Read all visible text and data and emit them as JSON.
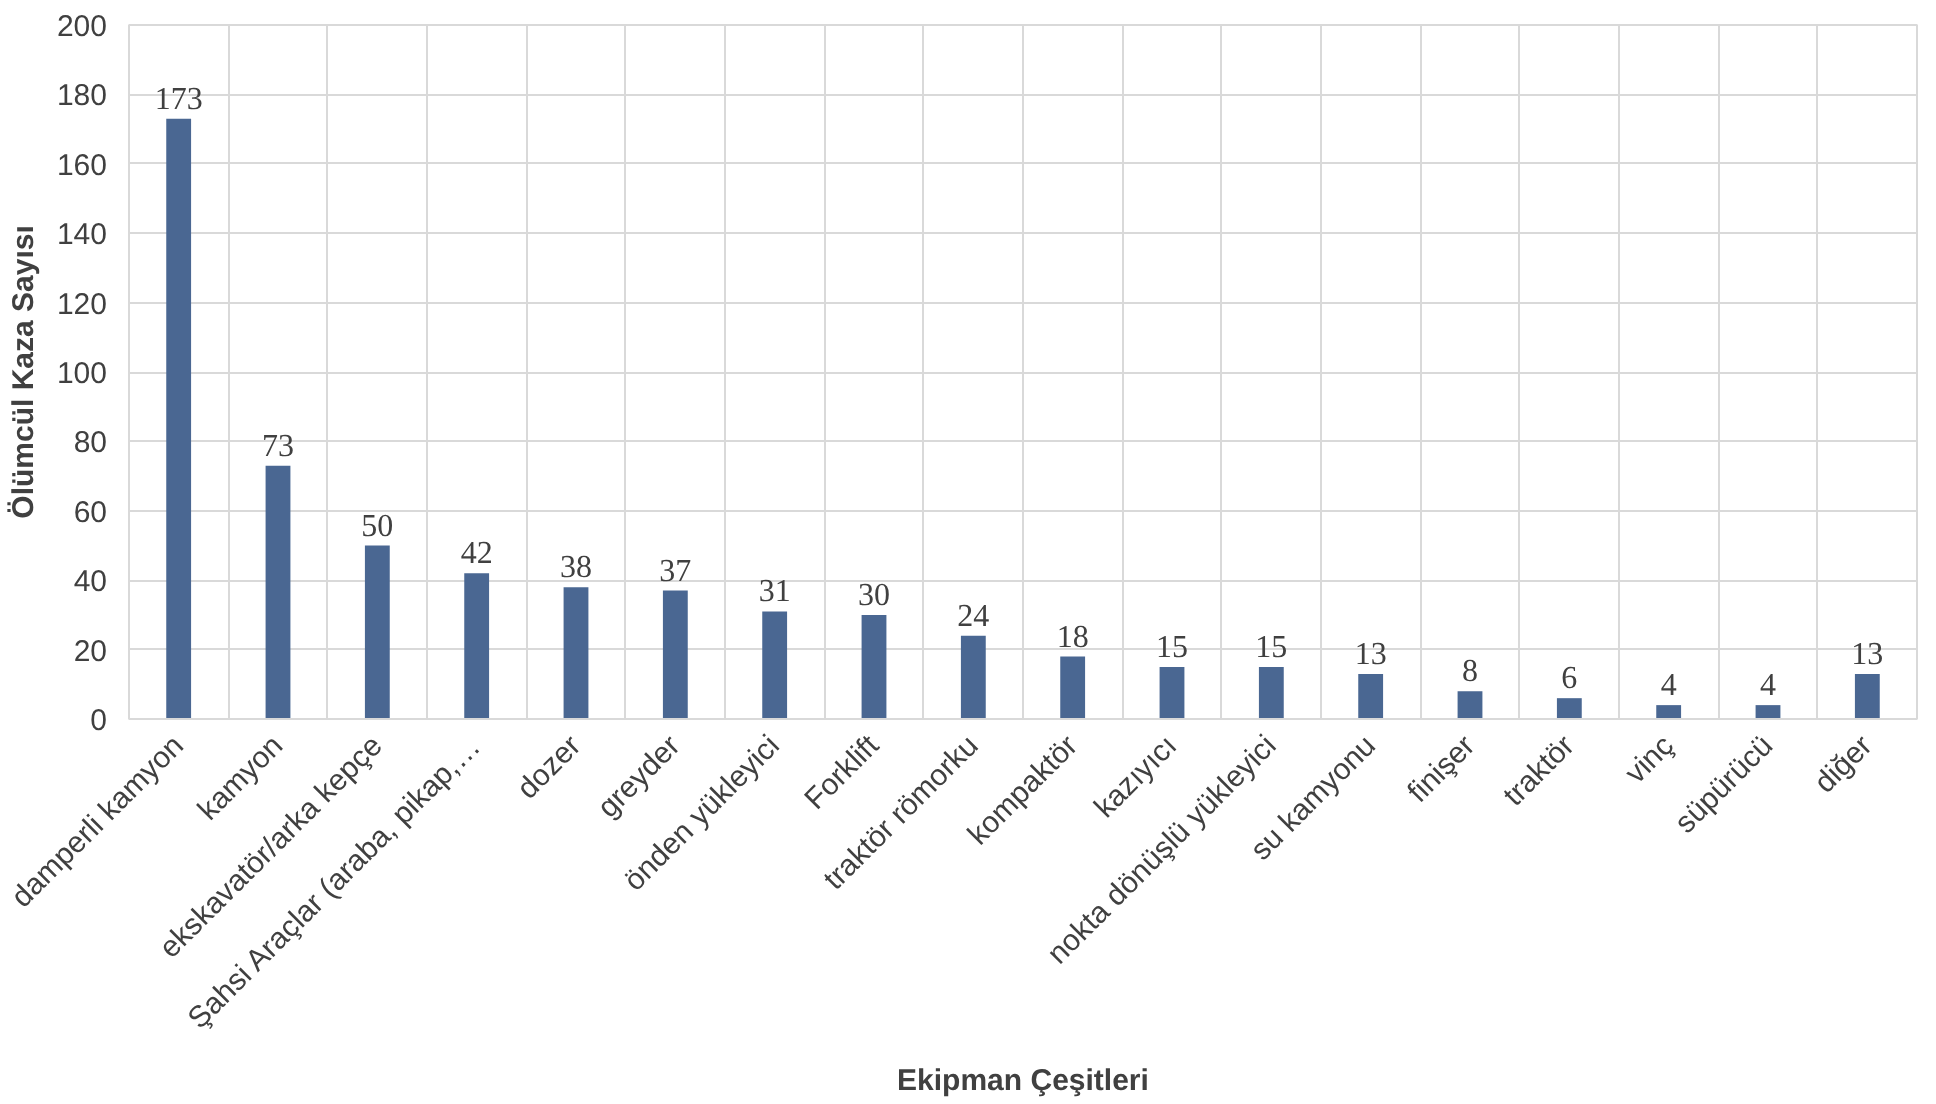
{
  "chart_data": {
    "type": "bar",
    "xlabel": "Ekipman Çeşitleri",
    "ylabel": "Ölümcül Kaza Sayısı",
    "categories": [
      "damperli kamyon",
      "kamyon",
      "ekskavatör/arka kepçe",
      "Şahsi Araçlar (araba, pikap,…",
      "dozer",
      "greyder",
      "önden yükleyici",
      "Forklift",
      "traktör römorku",
      "kompaktör",
      "kazıyıcı",
      "nokta dönüşlü yükleyici",
      "su kamyonu",
      "finişer",
      "traktör",
      "vinç",
      "süpürücü",
      "diğer"
    ],
    "values": [
      173,
      73,
      50,
      42,
      38,
      37,
      31,
      30,
      24,
      18,
      15,
      15,
      13,
      8,
      6,
      4,
      4,
      13
    ],
    "color": "#4a6792",
    "ylim": [
      0,
      200
    ],
    "yticks": [
      0,
      20,
      40,
      60,
      80,
      100,
      120,
      140,
      160,
      180,
      200
    ],
    "grid": true,
    "data_labels": true
  }
}
